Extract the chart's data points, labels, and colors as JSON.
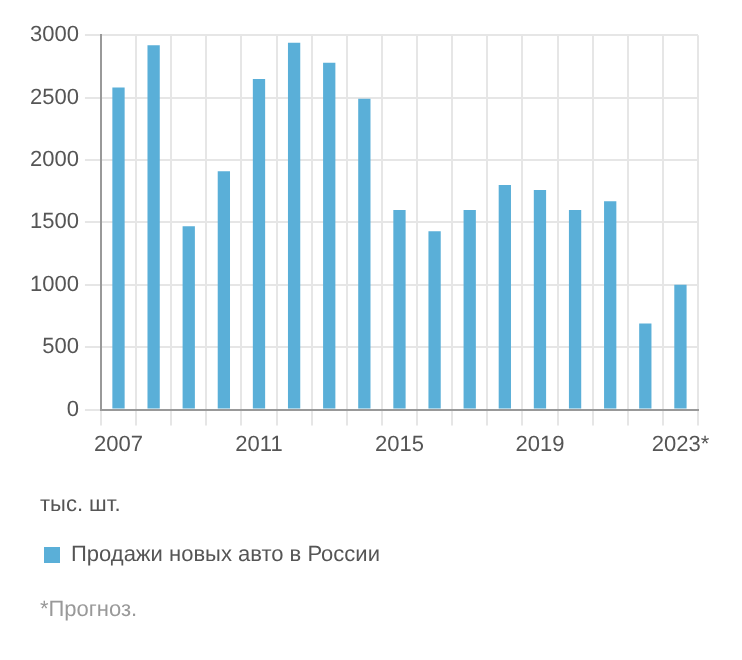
{
  "chart_data": {
    "type": "bar",
    "categories": [
      "2007",
      null,
      null,
      null,
      "2011",
      null,
      null,
      null,
      "2015",
      null,
      null,
      null,
      "2019",
      null,
      null,
      null,
      "2023*"
    ],
    "series": [
      {
        "name": "Продажи новых авто в России",
        "color": "#5aafd8",
        "values": [
          2580,
          2920,
          1470,
          1910,
          2650,
          2940,
          2780,
          2490,
          1600,
          1430,
          1600,
          1800,
          1760,
          1600,
          1670,
          690,
          1000
        ]
      }
    ],
    "ylim": [
      0,
      3000
    ],
    "yticks": [
      0,
      500,
      1000,
      1500,
      2000,
      2500,
      3000
    ],
    "grid": true,
    "legend": "bottom",
    "annotations": [
      "тыс. шт.",
      "*Прогноз."
    ]
  }
}
